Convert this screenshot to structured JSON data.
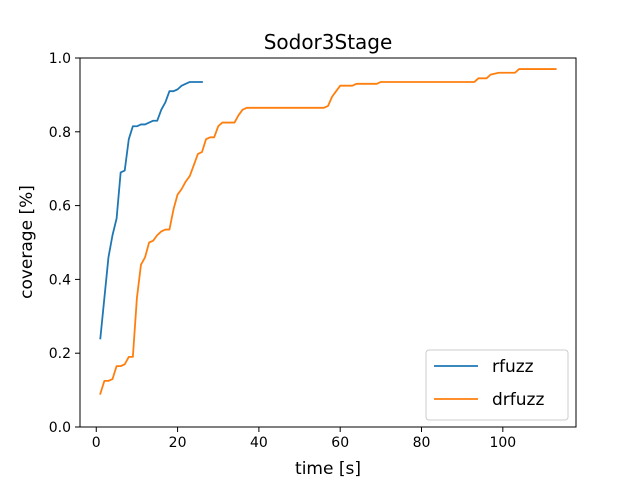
{
  "chart_data": {
    "type": "line",
    "title": "Sodor3Stage",
    "xlabel": "time [s]",
    "ylabel": "coverage [%]",
    "xlim": [
      -4,
      118
    ],
    "ylim": [
      0.0,
      1.0
    ],
    "xticks": [
      0,
      20,
      40,
      60,
      80,
      100
    ],
    "yticks": [
      0.0,
      0.2,
      0.4,
      0.6,
      0.8,
      1.0
    ],
    "xtick_labels": [
      "0",
      "20",
      "40",
      "60",
      "80",
      "100"
    ],
    "ytick_labels": [
      "0.0",
      "0.2",
      "0.4",
      "0.6",
      "0.8",
      "1.0"
    ],
    "grid": false,
    "legend_position": "lower-right",
    "series": [
      {
        "name": "rfuzz",
        "color": "#1f77b4",
        "points": [
          [
            1,
            0.24
          ],
          [
            2,
            0.35
          ],
          [
            3,
            0.46
          ],
          [
            4,
            0.52
          ],
          [
            5,
            0.565
          ],
          [
            6,
            0.69
          ],
          [
            7,
            0.695
          ],
          [
            8,
            0.78
          ],
          [
            9,
            0.815
          ],
          [
            10,
            0.815
          ],
          [
            11,
            0.82
          ],
          [
            12,
            0.82
          ],
          [
            13,
            0.825
          ],
          [
            14,
            0.83
          ],
          [
            15,
            0.83
          ],
          [
            16,
            0.86
          ],
          [
            17,
            0.88
          ],
          [
            18,
            0.91
          ],
          [
            19,
            0.91
          ],
          [
            20,
            0.915
          ],
          [
            21,
            0.925
          ],
          [
            22,
            0.93
          ],
          [
            23,
            0.935
          ],
          [
            24,
            0.935
          ],
          [
            25,
            0.935
          ],
          [
            26,
            0.935
          ]
        ]
      },
      {
        "name": "drfuzz",
        "color": "#ff7f0e",
        "points": [
          [
            1,
            0.09
          ],
          [
            2,
            0.125
          ],
          [
            3,
            0.125
          ],
          [
            4,
            0.13
          ],
          [
            5,
            0.165
          ],
          [
            6,
            0.165
          ],
          [
            7,
            0.17
          ],
          [
            8,
            0.19
          ],
          [
            9,
            0.19
          ],
          [
            10,
            0.35
          ],
          [
            11,
            0.44
          ],
          [
            12,
            0.46
          ],
          [
            13,
            0.5
          ],
          [
            14,
            0.505
          ],
          [
            15,
            0.52
          ],
          [
            16,
            0.53
          ],
          [
            17,
            0.535
          ],
          [
            18,
            0.535
          ],
          [
            19,
            0.59
          ],
          [
            20,
            0.63
          ],
          [
            21,
            0.645
          ],
          [
            22,
            0.665
          ],
          [
            23,
            0.68
          ],
          [
            24,
            0.71
          ],
          [
            25,
            0.74
          ],
          [
            26,
            0.745
          ],
          [
            27,
            0.78
          ],
          [
            28,
            0.785
          ],
          [
            29,
            0.785
          ],
          [
            30,
            0.815
          ],
          [
            31,
            0.825
          ],
          [
            32,
            0.825
          ],
          [
            33,
            0.825
          ],
          [
            34,
            0.825
          ],
          [
            35,
            0.845
          ],
          [
            36,
            0.86
          ],
          [
            37,
            0.865
          ],
          [
            40,
            0.865
          ],
          [
            50,
            0.865
          ],
          [
            56,
            0.865
          ],
          [
            57,
            0.87
          ],
          [
            58,
            0.895
          ],
          [
            59,
            0.91
          ],
          [
            60,
            0.925
          ],
          [
            61,
            0.925
          ],
          [
            62,
            0.925
          ],
          [
            63,
            0.925
          ],
          [
            64,
            0.93
          ],
          [
            65,
            0.93
          ],
          [
            68,
            0.93
          ],
          [
            69,
            0.93
          ],
          [
            70,
            0.935
          ],
          [
            75,
            0.935
          ],
          [
            80,
            0.935
          ],
          [
            85,
            0.935
          ],
          [
            90,
            0.935
          ],
          [
            92,
            0.935
          ],
          [
            93,
            0.935
          ],
          [
            94,
            0.945
          ],
          [
            96,
            0.945
          ],
          [
            97,
            0.955
          ],
          [
            99,
            0.96
          ],
          [
            101,
            0.96
          ],
          [
            102,
            0.96
          ],
          [
            103,
            0.96
          ],
          [
            104,
            0.97
          ],
          [
            106,
            0.97
          ],
          [
            110,
            0.97
          ],
          [
            113,
            0.97
          ]
        ]
      }
    ]
  }
}
